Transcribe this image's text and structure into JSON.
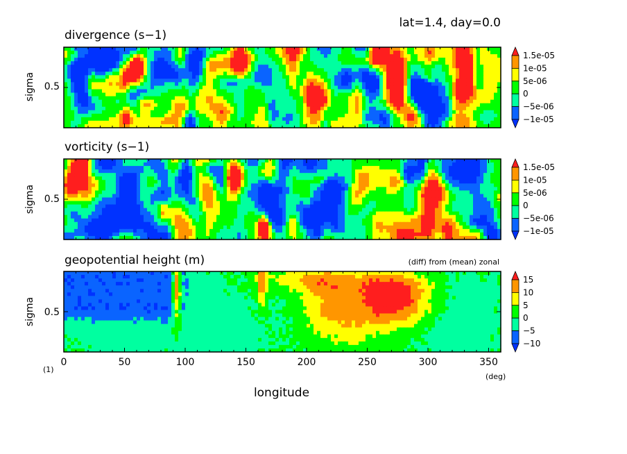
{
  "header": {
    "title": "lat=1.4, day=0.0"
  },
  "colors": {
    "red": "#ff1e1e",
    "orange": "#ff9600",
    "yellow": "#ffff00",
    "green": "#00ff00",
    "aqua": "#00ffa0",
    "blue": "#0a64ff",
    "deep": "#0032ff"
  },
  "chart_data": [
    {
      "type": "heatmap",
      "title": "divergence (s−1)",
      "ylabel": "sigma",
      "y_ticks": [
        "0.5"
      ],
      "ylim": [
        0,
        1
      ],
      "xlim": [
        0,
        360
      ],
      "colorbar": {
        "labels": [
          "1.5e-05",
          "1e-05",
          "5e-06",
          "0",
          "−5e-06",
          "−1e-05"
        ]
      },
      "features": [
        {
          "lon": 275,
          "sigma": 0.55,
          "value": 1.5e-05
        },
        {
          "lon": 95,
          "sigma": 0.9,
          "value": 1e-05
        },
        {
          "lon": 60,
          "sigma": 0.75,
          "value": 1e-05
        }
      ]
    },
    {
      "type": "heatmap",
      "title": "vorticity (s−1)",
      "ylabel": "sigma",
      "y_ticks": [
        "0.5"
      ],
      "ylim": [
        0,
        1
      ],
      "xlim": [
        0,
        360
      ],
      "colorbar": {
        "labels": [
          "1.5e-05",
          "1e-05",
          "5e-06",
          "0",
          "−5e-06",
          "−1e-05"
        ]
      },
      "features": [
        {
          "lon": 5,
          "sigma": 0.65,
          "value": 1.5e-05
        },
        {
          "lon": 140,
          "sigma": 0.75,
          "value": 1.5e-05
        },
        {
          "lon": 165,
          "sigma": 0.15,
          "value": 1.5e-05
        },
        {
          "lon": 50,
          "sigma": 0.6,
          "value": -1e-05
        }
      ]
    },
    {
      "type": "heatmap",
      "title": "geopotential height (m)",
      "subtitle": "(diff) from (mean) zonal",
      "ylabel": "sigma",
      "y_ticks": [
        "0.5"
      ],
      "xlabel": "longitude",
      "x_unit": "(deg)",
      "corner_label": "(1)",
      "x_ticks": [
        0,
        50,
        100,
        150,
        200,
        250,
        300,
        350
      ],
      "ylim": [
        0,
        1
      ],
      "xlim": [
        0,
        360
      ],
      "colorbar": {
        "labels": [
          "15",
          "10",
          "5",
          "0",
          "−5",
          "−10"
        ]
      },
      "features": [
        {
          "lon": 40,
          "sigma": 0.7,
          "value": -12
        },
        {
          "lon": 93,
          "sigma": 0.85,
          "value": 15
        },
        {
          "lon": 163,
          "sigma": 0.8,
          "value": 15
        },
        {
          "lon": 275,
          "sigma": 0.6,
          "value": 15
        },
        {
          "lon": 210,
          "sigma": 0.6,
          "value": 10
        }
      ]
    }
  ]
}
